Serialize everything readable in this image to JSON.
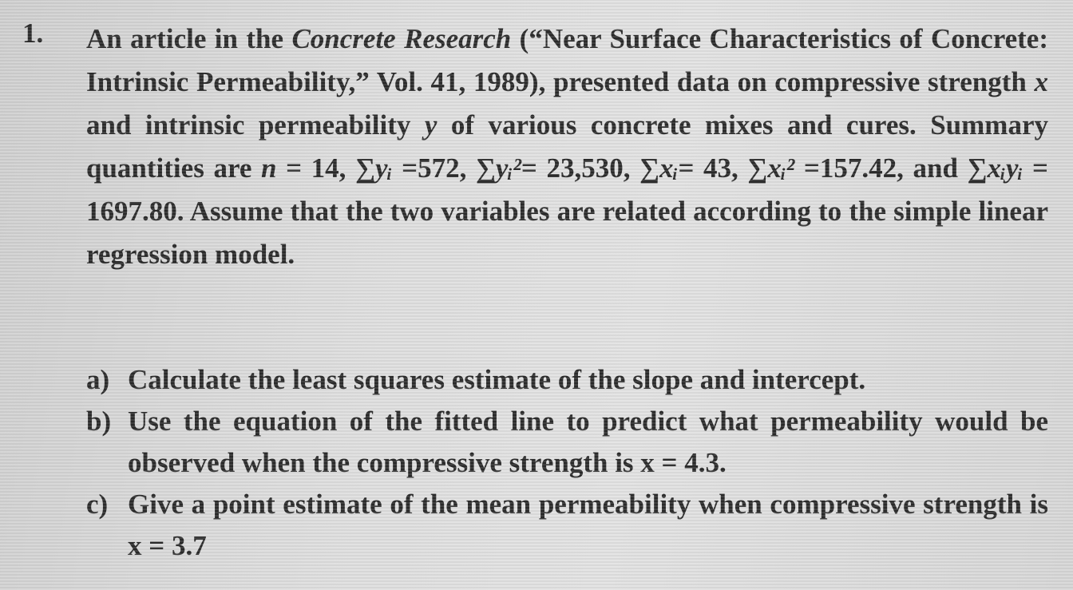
{
  "problem": {
    "number": "1.",
    "intro": [
      "An article in the ",
      "Concrete Research",
      " (“Near Surface Characteristics of Concrete: Intrinsic Permeability,” Vol. 41, 1989), presented data on compressive strength ",
      "x",
      " and intrinsic permeability ",
      "y",
      " of various concrete mixes and cures. Summary quantities are ",
      "n",
      " = 14, ",
      "∑yᵢ",
      " =572, ",
      "∑yᵢ²",
      "= 23,530, ",
      "∑xᵢ",
      "= 43, ",
      "∑xᵢ²",
      " =157.42, and ",
      "∑xᵢyᵢ",
      " = 1697.80. Assume that the two variables are related according to the simple linear regression model."
    ],
    "parts": [
      {
        "label": "a)",
        "text": "Calculate the least squares estimate of the slope and intercept."
      },
      {
        "label": "b)",
        "text": "Use the equation of the fitted line to predict what permeability would be observed when the compressive strength is x = 4.3."
      },
      {
        "label": "c)",
        "text": "Give a point estimate of the mean permeability when compressive strength is x = 3.7"
      }
    ]
  }
}
